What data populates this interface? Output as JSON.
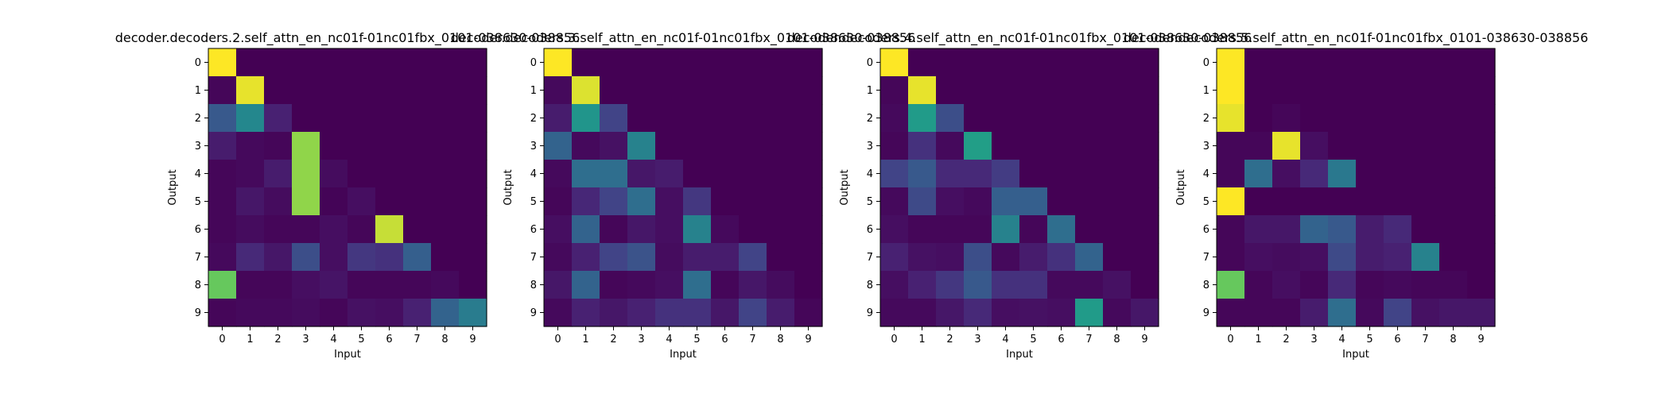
{
  "figure": {
    "background": "#ffffff",
    "colormap": "viridis"
  },
  "chart_data": [
    {
      "type": "heatmap",
      "title": "decoder.decoders.2.self_attn_en_nc01f-01nc01fbx_0101-038630-038856",
      "xlabel": "Input",
      "ylabel": "Output",
      "x_ticks": [
        "0",
        "1",
        "2",
        "3",
        "4",
        "5",
        "6",
        "7",
        "8",
        "9"
      ],
      "y_ticks": [
        "0",
        "1",
        "2",
        "3",
        "4",
        "5",
        "6",
        "7",
        "8",
        "9"
      ],
      "values": [
        [
          1.0,
          0.0,
          0.0,
          0.0,
          0.0,
          0.0,
          0.0,
          0.0,
          0.0,
          0.0
        ],
        [
          0.02,
          0.98,
          0.0,
          0.0,
          0.0,
          0.0,
          0.0,
          0.0,
          0.0,
          0.0
        ],
        [
          0.35,
          0.58,
          0.12,
          0.0,
          0.0,
          0.0,
          0.0,
          0.0,
          0.0,
          0.0
        ],
        [
          0.1,
          0.03,
          0.02,
          0.9,
          0.0,
          0.0,
          0.0,
          0.0,
          0.0,
          0.0
        ],
        [
          0.02,
          0.03,
          0.1,
          0.9,
          0.04,
          0.0,
          0.0,
          0.0,
          0.0,
          0.0
        ],
        [
          0.02,
          0.08,
          0.04,
          0.9,
          0.01,
          0.05,
          0.0,
          0.0,
          0.0,
          0.0
        ],
        [
          0.02,
          0.04,
          0.02,
          0.02,
          0.05,
          0.02,
          0.95,
          0.0,
          0.0,
          0.0
        ],
        [
          0.03,
          0.15,
          0.08,
          0.3,
          0.05,
          0.2,
          0.18,
          0.38,
          0.0,
          0.0
        ],
        [
          0.85,
          0.02,
          0.02,
          0.05,
          0.07,
          0.02,
          0.02,
          0.02,
          0.03,
          0.0
        ],
        [
          0.02,
          0.03,
          0.03,
          0.04,
          0.02,
          0.06,
          0.05,
          0.12,
          0.4,
          0.52
        ]
      ]
    },
    {
      "type": "heatmap",
      "title": "decoder.decoders.3.self_attn_en_nc01f-01nc01fbx_0101-038630-038856",
      "xlabel": "Input",
      "ylabel": "Output",
      "x_ticks": [
        "0",
        "1",
        "2",
        "3",
        "4",
        "5",
        "6",
        "7",
        "8",
        "9"
      ],
      "y_ticks": [
        "0",
        "1",
        "2",
        "3",
        "4",
        "5",
        "6",
        "7",
        "8",
        "9"
      ],
      "values": [
        [
          1.0,
          0.0,
          0.0,
          0.0,
          0.0,
          0.0,
          0.0,
          0.0,
          0.0,
          0.0
        ],
        [
          0.03,
          0.97,
          0.0,
          0.0,
          0.0,
          0.0,
          0.0,
          0.0,
          0.0,
          0.0
        ],
        [
          0.1,
          0.65,
          0.25,
          0.0,
          0.0,
          0.0,
          0.0,
          0.0,
          0.0,
          0.0
        ],
        [
          0.4,
          0.03,
          0.06,
          0.55,
          0.0,
          0.0,
          0.0,
          0.0,
          0.0,
          0.0
        ],
        [
          0.03,
          0.45,
          0.45,
          0.08,
          0.1,
          0.0,
          0.0,
          0.0,
          0.0,
          0.0
        ],
        [
          0.02,
          0.14,
          0.25,
          0.45,
          0.05,
          0.2,
          0.0,
          0.0,
          0.0,
          0.0
        ],
        [
          0.05,
          0.4,
          0.02,
          0.08,
          0.05,
          0.55,
          0.03,
          0.0,
          0.0,
          0.0
        ],
        [
          0.03,
          0.12,
          0.25,
          0.32,
          0.04,
          0.1,
          0.1,
          0.25,
          0.0,
          0.0
        ],
        [
          0.08,
          0.4,
          0.02,
          0.03,
          0.05,
          0.45,
          0.02,
          0.08,
          0.04,
          0.0
        ],
        [
          0.03,
          0.12,
          0.08,
          0.12,
          0.18,
          0.18,
          0.08,
          0.25,
          0.1,
          0.02
        ]
      ]
    },
    {
      "type": "heatmap",
      "title": "decoder.decoders.4.self_attn_en_nc01f-01nc01fbx_0101-038630-038856",
      "xlabel": "Input",
      "ylabel": "Output",
      "x_ticks": [
        "0",
        "1",
        "2",
        "3",
        "4",
        "5",
        "6",
        "7",
        "8",
        "9"
      ],
      "y_ticks": [
        "0",
        "1",
        "2",
        "3",
        "4",
        "5",
        "6",
        "7",
        "8",
        "9"
      ],
      "values": [
        [
          1.0,
          0.0,
          0.0,
          0.0,
          0.0,
          0.0,
          0.0,
          0.0,
          0.0,
          0.0
        ],
        [
          0.02,
          0.98,
          0.0,
          0.0,
          0.0,
          0.0,
          0.0,
          0.0,
          0.0,
          0.0
        ],
        [
          0.03,
          0.68,
          0.3,
          0.0,
          0.0,
          0.0,
          0.0,
          0.0,
          0.0,
          0.0
        ],
        [
          0.02,
          0.18,
          0.03,
          0.7,
          0.0,
          0.0,
          0.0,
          0.0,
          0.0,
          0.0
        ],
        [
          0.25,
          0.35,
          0.15,
          0.15,
          0.22,
          0.0,
          0.0,
          0.0,
          0.0,
          0.0
        ],
        [
          0.03,
          0.28,
          0.05,
          0.03,
          0.38,
          0.38,
          0.0,
          0.0,
          0.0,
          0.0
        ],
        [
          0.05,
          0.02,
          0.02,
          0.02,
          0.55,
          0.02,
          0.45,
          0.0,
          0.0,
          0.0
        ],
        [
          0.12,
          0.06,
          0.05,
          0.3,
          0.03,
          0.1,
          0.18,
          0.4,
          0.0,
          0.0
        ],
        [
          0.05,
          0.12,
          0.2,
          0.35,
          0.18,
          0.18,
          0.03,
          0.03,
          0.06,
          0.0
        ],
        [
          0.03,
          0.03,
          0.08,
          0.15,
          0.05,
          0.06,
          0.05,
          0.68,
          0.03,
          0.08
        ]
      ]
    },
    {
      "type": "heatmap",
      "title": "decoder.decoders.5.self_attn_en_nc01f-01nc01fbx_0101-038630-038856",
      "xlabel": "Input",
      "ylabel": "Output",
      "x_ticks": [
        "0",
        "1",
        "2",
        "3",
        "4",
        "5",
        "6",
        "7",
        "8",
        "9"
      ],
      "y_ticks": [
        "0",
        "1",
        "2",
        "3",
        "4",
        "5",
        "6",
        "7",
        "8",
        "9"
      ],
      "values": [
        [
          1.0,
          0.0,
          0.0,
          0.0,
          0.0,
          0.0,
          0.0,
          0.0,
          0.0,
          0.0
        ],
        [
          1.0,
          0.0,
          0.0,
          0.0,
          0.0,
          0.0,
          0.0,
          0.0,
          0.0,
          0.0
        ],
        [
          0.98,
          0.0,
          0.02,
          0.0,
          0.0,
          0.0,
          0.0,
          0.0,
          0.0,
          0.0
        ],
        [
          0.02,
          0.02,
          0.98,
          0.05,
          0.0,
          0.0,
          0.0,
          0.0,
          0.0,
          0.0
        ],
        [
          0.02,
          0.45,
          0.05,
          0.15,
          0.5,
          0.0,
          0.0,
          0.0,
          0.0,
          0.0
        ],
        [
          1.0,
          0.0,
          0.0,
          0.0,
          0.0,
          0.0,
          0.0,
          0.0,
          0.0,
          0.0
        ],
        [
          0.02,
          0.08,
          0.08,
          0.4,
          0.35,
          0.1,
          0.15,
          0.0,
          0.0,
          0.0
        ],
        [
          0.02,
          0.05,
          0.04,
          0.05,
          0.28,
          0.1,
          0.12,
          0.55,
          0.0,
          0.0
        ],
        [
          0.85,
          0.02,
          0.05,
          0.02,
          0.15,
          0.02,
          0.03,
          0.02,
          0.02,
          0.0
        ],
        [
          0.02,
          0.02,
          0.02,
          0.1,
          0.45,
          0.03,
          0.25,
          0.06,
          0.08,
          0.08
        ]
      ]
    }
  ]
}
